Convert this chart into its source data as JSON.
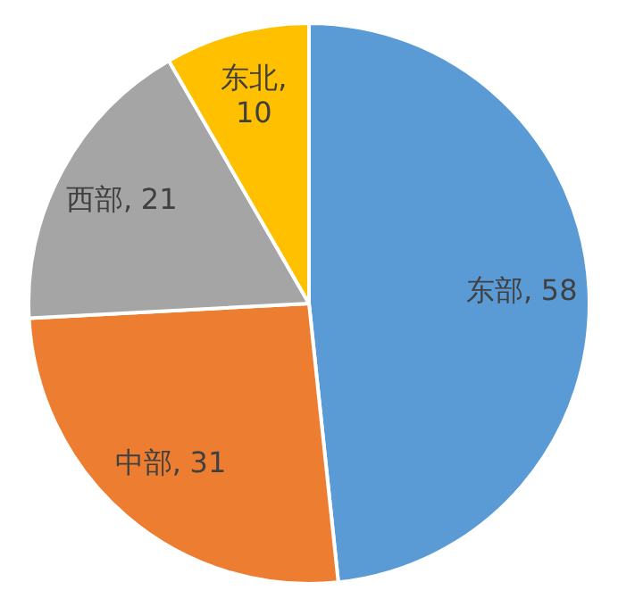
{
  "chart_data": {
    "type": "pie",
    "categories": [
      "东部",
      "中部",
      "西部",
      "东北"
    ],
    "values": [
      58,
      31,
      21,
      10
    ],
    "value_labels": [
      ", 58",
      ", 31",
      ", 21",
      ", 10"
    ],
    "colors": [
      "#5b9bd5",
      "#ed7d31",
      "#a5a5a5",
      "#ffc000"
    ]
  }
}
